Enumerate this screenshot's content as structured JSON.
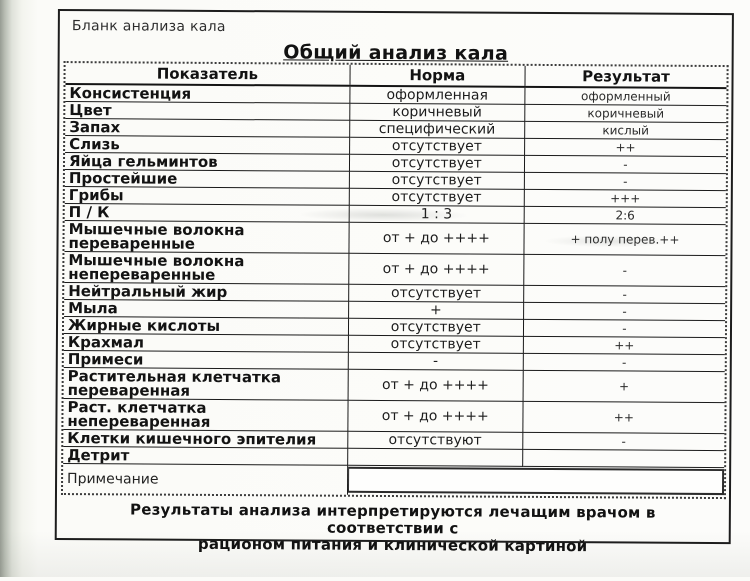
{
  "colors": {
    "ink": "#1a1a1a",
    "paper": "#fcfcfa",
    "scanner_edge_gray": "#979c93"
  },
  "header": {
    "form_label": "Бланк анализа кала",
    "title": "Общий анализ кала"
  },
  "table": {
    "columns": [
      "Показатель",
      "Норма",
      "Результат"
    ],
    "rows": [
      {
        "name": "Консистенция",
        "norm": "оформленная",
        "result": "оформленный"
      },
      {
        "name": "Цвет",
        "norm": "коричневый",
        "result": "коричневый"
      },
      {
        "name": "Запах",
        "norm": "специфический",
        "result": "кислый"
      },
      {
        "name": "Слизь",
        "norm": "отсутствует",
        "result": "++"
      },
      {
        "name": "Яйца гельминтов",
        "norm": "отсутствует",
        "result": "-"
      },
      {
        "name": "Простейшие",
        "norm": "отсутствует",
        "result": "-"
      },
      {
        "name": "Грибы",
        "norm": "отсутствует",
        "result": "+++"
      },
      {
        "name": "П / К",
        "norm": "1 : 3",
        "result": "2:6"
      },
      {
        "name": "Мышечные волокна\nпереваренные",
        "norm": "от + до ++++",
        "result": "+ полу перев.++"
      },
      {
        "name": "Мышечные волокна\nнепереваренные",
        "norm": "от + до ++++",
        "result": "-"
      },
      {
        "name": "Нейтральный жир",
        "norm": "отсутствует",
        "result": "-"
      },
      {
        "name": "Мыла",
        "norm": "+",
        "result": "-"
      },
      {
        "name": "Жирные кислоты",
        "norm": "отсутствует",
        "result": "-"
      },
      {
        "name": "Крахмал",
        "norm": "отсутствует",
        "result": "++"
      },
      {
        "name": "Примеси",
        "norm": "-",
        "result": "-"
      },
      {
        "name": "Растительная клетчатка\nпереваренная",
        "norm": "от + до ++++",
        "result": "+"
      },
      {
        "name": "Раст. клетчатка\nнепереваренная",
        "norm": "от + до ++++",
        "result": "++"
      },
      {
        "name": "Клетки кишечного эпителия",
        "norm": "отсутствуют",
        "result": "-"
      },
      {
        "name": "Детрит",
        "norm": "",
        "result": ""
      }
    ],
    "note_row": {
      "label": "Примечание",
      "value": ""
    }
  },
  "footer": {
    "disclaimer": "Результаты анализа интерпретируются лечащим врачом в соответствии с\nрационом питания и клинической картиной"
  }
}
